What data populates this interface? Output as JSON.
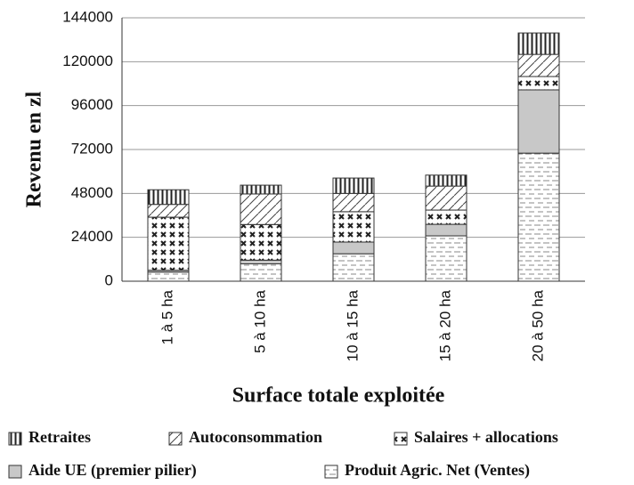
{
  "chart_data": {
    "type": "stacked_bar",
    "y_label": "Revenu en zl",
    "x_label": "Surface totale exploitée",
    "categories": [
      "1 à 5 ha",
      "5 à 10 ha",
      "10 à 15 ha",
      "15 à 20 ha",
      "20 à 50 ha"
    ],
    "series": [
      {
        "name": "Produit Agric. Net (Ventes)",
        "color": "#888888",
        "values": [
          5000,
          9500,
          15000,
          24800,
          70000
        ]
      },
      {
        "name": "Aide UE (premier pilier)",
        "color": "#c8c8c8",
        "values": [
          1000,
          2000,
          6400,
          6300,
          34600
        ]
      },
      {
        "name": "Salaires + allocations",
        "color": "#222222",
        "values": [
          29000,
          19500,
          16600,
          7800,
          7300
        ]
      },
      {
        "name": "Autoconsommation",
        "color": "#444444",
        "values": [
          7000,
          16700,
          10000,
          13100,
          12100
        ]
      },
      {
        "name": "Retraites",
        "color": "#222222",
        "values": [
          8000,
          4800,
          8400,
          6000,
          11700
        ]
      }
    ],
    "ylim": [
      0,
      144000
    ],
    "yticks": [
      0,
      24000,
      48000,
      72000,
      96000,
      120000,
      144000
    ],
    "grid": true
  }
}
